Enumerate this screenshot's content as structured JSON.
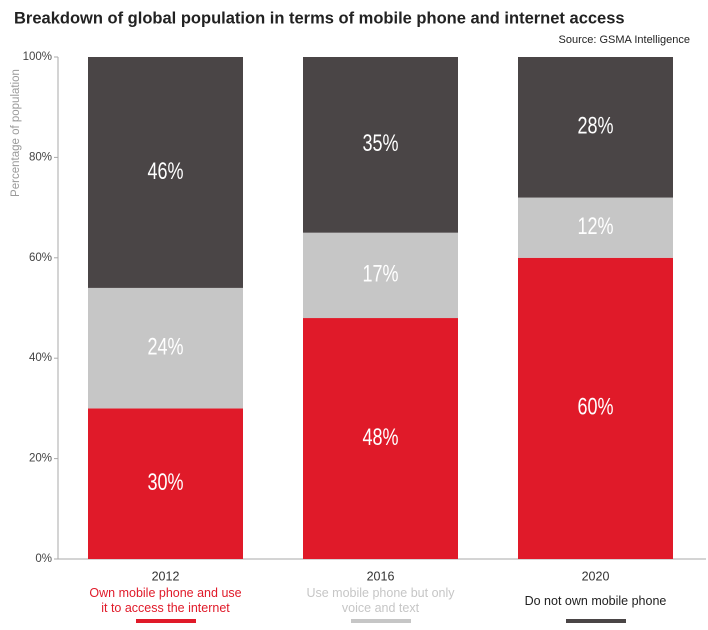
{
  "chart_data": {
    "type": "stacked_bar",
    "title": "Breakdown of global population in terms of mobile phone and internet access",
    "subtitle": "Source: GSMA Intelligence",
    "y_label": "Percentage of population",
    "categories": [
      "2012",
      "2016",
      "2020"
    ],
    "series": [
      {
        "name": "Own mobile phone and use it to access the internet",
        "color": "#e01a29",
        "values": [
          30,
          48,
          60
        ],
        "value_labels": [
          "30%",
          "48%",
          "60%"
        ]
      },
      {
        "name": "Use mobile phone but only voice and text",
        "color": "#c6c6c6",
        "values": [
          24,
          17,
          12
        ],
        "value_labels": [
          "24%",
          "17%",
          "12%"
        ]
      },
      {
        "name": "Do not own mobile phone",
        "color": "#4a4546",
        "values": [
          46,
          35,
          28
        ],
        "value_labels": [
          "46%",
          "35%",
          "28%"
        ]
      }
    ],
    "ylim": [
      0,
      100
    ],
    "yticks": [
      {
        "value": 0,
        "label": "0%"
      },
      {
        "value": 20,
        "label": "20%"
      },
      {
        "value": 40,
        "label": "40%"
      },
      {
        "value": 60,
        "label": "60%"
      },
      {
        "value": 80,
        "label": "80%"
      },
      {
        "value": 100,
        "label": "100%"
      }
    ],
    "grid": false
  }
}
